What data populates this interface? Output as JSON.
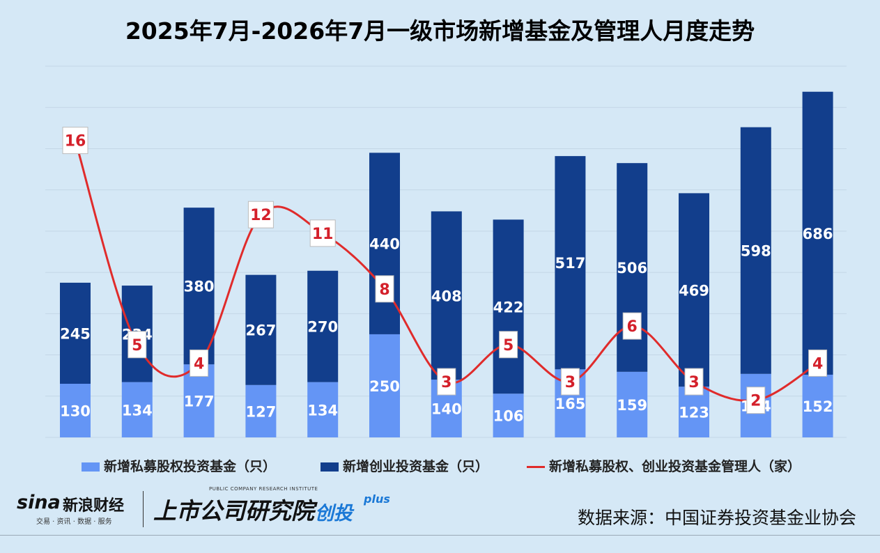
{
  "title": "2025年7月-2026年7月一级市场新增基金及管理人月度走势",
  "legend": {
    "pe": "新增私募股权投资基金（只）",
    "vc": "新增创业投资基金（只）",
    "mgr": "新增私募股权、创业投资基金管理人（家）"
  },
  "source": "数据来源：中国证券投资基金业协会",
  "logos": {
    "sina_word": "sina",
    "sina_cn": "新浪财经",
    "sina_sub": "交易 · 资讯 · 数据 · 服务",
    "inst_en": "PUBLIC COMPANY RESEARCH INSTITUTE",
    "inst_cn": "上市公司研究院",
    "inst_sub": "创投",
    "inst_plus": "plus"
  },
  "colors": {
    "pe": "#6495f5",
    "vc": "#123e8c",
    "mgr": "#e02b2b",
    "label_red": "#d4202a"
  },
  "chart_data": {
    "type": "bar",
    "stacked": true,
    "months": 13,
    "series": [
      {
        "name": "新增私募股权投资基金（只）",
        "values": [
          130,
          134,
          177,
          127,
          134,
          250,
          140,
          106,
          165,
          159,
          123,
          154,
          152
        ]
      },
      {
        "name": "新增创业投资基金（只）",
        "values": [
          245,
          234,
          380,
          267,
          270,
          440,
          408,
          422,
          517,
          506,
          469,
          598,
          686
        ]
      },
      {
        "name": "新增私募股权、创业投资基金管理人（家）",
        "type": "line",
        "values": [
          16,
          5,
          4,
          12,
          11,
          8,
          3,
          5,
          3,
          6,
          3,
          2,
          4
        ]
      }
    ],
    "ylim": [
      0,
      900
    ],
    "line_ylim": [
      0,
      20
    ],
    "grid": true,
    "legend_position": "bottom"
  }
}
